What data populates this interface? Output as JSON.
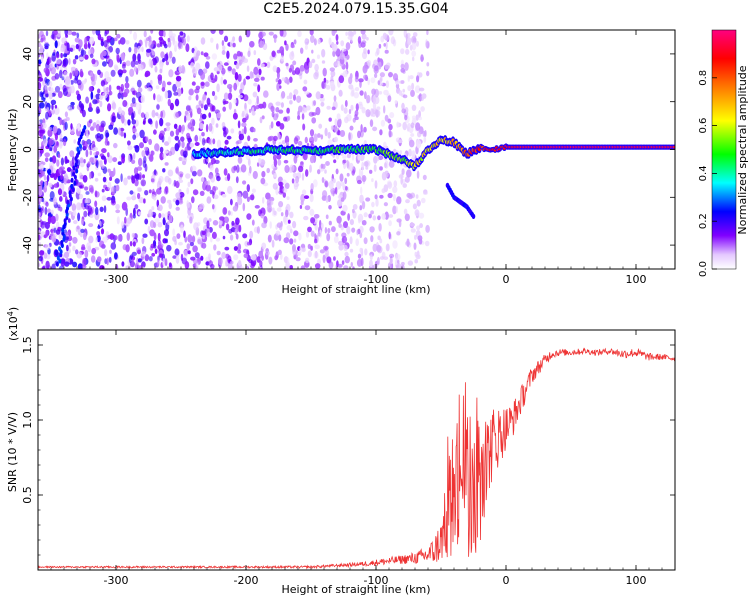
{
  "title": "C2E5.2024.079.15.35.G04",
  "chart_data": [
    {
      "type": "heatmap",
      "xlabel": "Height of straight line (km)",
      "ylabel": "Frequency (Hz)",
      "xlim": [
        -360,
        130
      ],
      "ylim": [
        -50,
        50
      ],
      "xticks": [
        -300,
        -200,
        -100,
        0,
        100
      ],
      "yticks": [
        -40,
        -20,
        0,
        20,
        40
      ],
      "colorbar": {
        "label": "Normalized spectral amplitude",
        "range": [
          0,
          1
        ],
        "ticks": [
          "0.0",
          "0.2",
          "0.4",
          "0.6",
          "0.8"
        ],
        "colors": [
          "#ffffff",
          "#8000ff",
          "#0000ff",
          "#00ffff",
          "#00ff00",
          "#ffff00",
          "#ff0000",
          "#ff0080"
        ]
      },
      "ridge": {
        "x": [
          -240,
          -210,
          -180,
          -150,
          -120,
          -100,
          -80,
          -70,
          -60,
          -50,
          -40,
          -30,
          -20,
          -10,
          0,
          20,
          50,
          90,
          130
        ],
        "y": [
          -2,
          -1,
          0,
          -0.5,
          0,
          0,
          -4,
          -7,
          0,
          4,
          3,
          -2,
          1,
          0,
          1,
          1,
          1,
          1,
          1
        ],
        "amplitude": [
          0.35,
          0.38,
          0.42,
          0.45,
          0.48,
          0.5,
          0.55,
          0.6,
          0.62,
          0.65,
          0.7,
          0.78,
          0.85,
          0.9,
          0.92,
          0.95,
          0.96,
          0.95,
          0.94
        ]
      },
      "side_branch": {
        "x": [
          -45,
          -40,
          -35,
          -30,
          -25
        ],
        "y": [
          -15,
          -20,
          -22,
          -24,
          -28
        ]
      }
    },
    {
      "type": "line",
      "xlabel": "Height of straight line (km)",
      "ylabel": "SNR (10 * V/V)",
      "multiplier": "(x10",
      "multiplier_exp": "4",
      "multiplier_close": ")",
      "xlim": [
        -360,
        130
      ],
      "ylim": [
        0,
        1.6
      ],
      "xticks": [
        -300,
        -200,
        -100,
        0,
        100
      ],
      "yticks": [
        "0.5",
        "1.0",
        "1.5"
      ],
      "ytick_values": [
        0.5,
        1.0,
        1.5
      ],
      "color": "#ee3333",
      "series": [
        {
          "x": [
            -360,
            -300,
            -250,
            -200,
            -150,
            -130,
            -110,
            -100,
            -90,
            -80,
            -70,
            -60,
            -55,
            -50,
            -45,
            -40,
            -35,
            -30,
            -25,
            -20,
            -15,
            -10,
            -5,
            0,
            5,
            10,
            15,
            20,
            25,
            30,
            35,
            40,
            50,
            60,
            70,
            80,
            90,
            100,
            110,
            120,
            130
          ],
          "y": [
            0.02,
            0.02,
            0.02,
            0.02,
            0.02,
            0.03,
            0.04,
            0.05,
            0.06,
            0.07,
            0.08,
            0.1,
            0.13,
            0.2,
            0.35,
            0.45,
            0.5,
            0.55,
            0.5,
            0.4,
            0.75,
            0.85,
            0.9,
            0.95,
            1.0,
            1.1,
            1.2,
            1.3,
            1.35,
            1.4,
            1.44,
            1.45,
            1.45,
            1.46,
            1.45,
            1.46,
            1.44,
            1.45,
            1.42,
            1.42,
            1.41
          ],
          "noise": [
            0.005,
            0.006,
            0.006,
            0.006,
            0.008,
            0.01,
            0.015,
            0.02,
            0.025,
            0.03,
            0.04,
            0.06,
            0.1,
            0.15,
            0.3,
            0.35,
            0.4,
            0.45,
            0.45,
            0.4,
            0.3,
            0.25,
            0.2,
            0.15,
            0.12,
            0.1,
            0.08,
            0.06,
            0.05,
            0.04,
            0.03,
            0.025,
            0.02,
            0.02,
            0.02,
            0.02,
            0.03,
            0.03,
            0.025,
            0.02,
            0.02
          ]
        }
      ]
    }
  ]
}
